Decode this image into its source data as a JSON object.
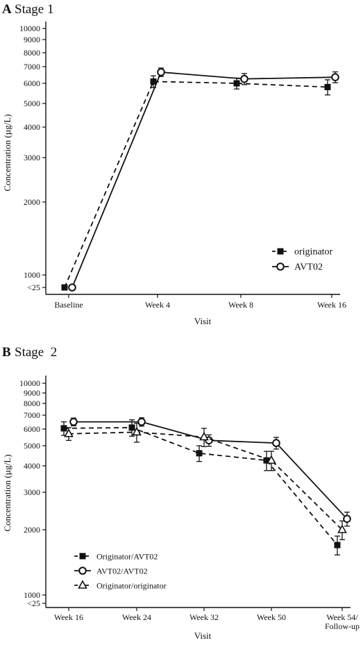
{
  "chart_data": [
    {
      "type": "line",
      "panel_letter": "A",
      "title": "Stage 1",
      "xlabel": "Visit",
      "ylabel": "Concentration (µg/L)",
      "categories": [
        "Baseline",
        "Week 4",
        "Week 8",
        "Week 16"
      ],
      "yscale": "log",
      "yticks": [
        "<25",
        "1000",
        "2000",
        "3000",
        "4000",
        "5000",
        "6000",
        "7000",
        "8000",
        "9000",
        "10000"
      ],
      "legend_position": "bottom-right",
      "series": [
        {
          "name": "originator",
          "marker": "square",
          "line": "dashed",
          "values": [
            25,
            6100,
            6000,
            5800
          ],
          "err": [
            0,
            330,
            300,
            400
          ]
        },
        {
          "name": "AVT02",
          "marker": "circle",
          "line": "solid",
          "values": [
            25,
            6650,
            6250,
            6350
          ],
          "err": [
            0,
            260,
            320,
            320
          ]
        }
      ]
    },
    {
      "type": "line",
      "panel_letter": "B",
      "title": "Stage  2",
      "xlabel": "Visit",
      "ylabel": "Concentration (µg/L)",
      "categories": [
        "Week 16",
        "Week 24",
        "Week 32",
        "Week 50",
        "Week 54/\nFollow-up"
      ],
      "yscale": "log",
      "yticks": [
        "<25",
        "1000",
        "2000",
        "3000",
        "4000",
        "5000",
        "6000",
        "7000",
        "8000",
        "9000",
        "10000"
      ],
      "legend_position": "bottom-left",
      "series": [
        {
          "name": "Originator/AVT02",
          "marker": "square",
          "line": "dashed",
          "values": [
            6050,
            6100,
            4600,
            4250,
            1700
          ],
          "err": [
            450,
            550,
            400,
            450,
            170
          ]
        },
        {
          "name": "AVT02/AVT02",
          "marker": "circle",
          "line": "solid",
          "values": [
            6500,
            6500,
            5300,
            5150,
            2250
          ],
          "err": [
            280,
            300,
            330,
            330,
            170
          ]
        },
        {
          "name": "Originator/originator",
          "marker": "triangle",
          "line": "dashed",
          "values": [
            5700,
            5800,
            5500,
            4250,
            2000
          ],
          "err": [
            400,
            600,
            550,
            450,
            200
          ]
        }
      ]
    }
  ]
}
